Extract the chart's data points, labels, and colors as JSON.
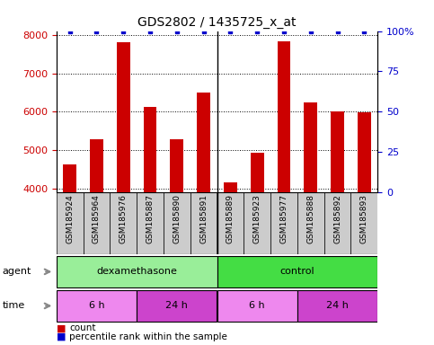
{
  "title": "GDS2802 / 1435725_x_at",
  "samples": [
    "GSM185924",
    "GSM185964",
    "GSM185976",
    "GSM185887",
    "GSM185890",
    "GSM185891",
    "GSM185889",
    "GSM185923",
    "GSM185977",
    "GSM185888",
    "GSM185892",
    "GSM185893"
  ],
  "counts": [
    4620,
    5280,
    7800,
    6130,
    5280,
    6490,
    4160,
    4930,
    7830,
    6240,
    6000,
    5990
  ],
  "percentile_ranks": [
    100,
    100,
    100,
    100,
    100,
    100,
    100,
    100,
    100,
    100,
    100,
    100
  ],
  "ylim_left": [
    3900,
    8100
  ],
  "ylim_right": [
    0,
    100
  ],
  "yticks_left": [
    4000,
    5000,
    6000,
    7000,
    8000
  ],
  "yticks_right": [
    0,
    25,
    50,
    75,
    100
  ],
  "ytick_labels_right": [
    "0",
    "25",
    "50",
    "75",
    "100%"
  ],
  "bar_color": "#cc0000",
  "dot_color": "#0000cc",
  "agent_groups": [
    {
      "label": "dexamethasone",
      "start": 0,
      "end": 6,
      "color": "#99ee99"
    },
    {
      "label": "control",
      "start": 6,
      "end": 12,
      "color": "#44dd44"
    }
  ],
  "time_groups": [
    {
      "label": "6 h",
      "start": 0,
      "end": 3,
      "color": "#ee88ee"
    },
    {
      "label": "24 h",
      "start": 3,
      "end": 6,
      "color": "#cc44cc"
    },
    {
      "label": "6 h",
      "start": 6,
      "end": 9,
      "color": "#ee88ee"
    },
    {
      "label": "24 h",
      "start": 9,
      "end": 12,
      "color": "#cc44cc"
    }
  ],
  "left_tick_color": "#cc0000",
  "right_tick_color": "#0000cc",
  "sample_bg_color": "#cccccc",
  "fig_width": 4.83,
  "fig_height": 3.84,
  "dpi": 100
}
